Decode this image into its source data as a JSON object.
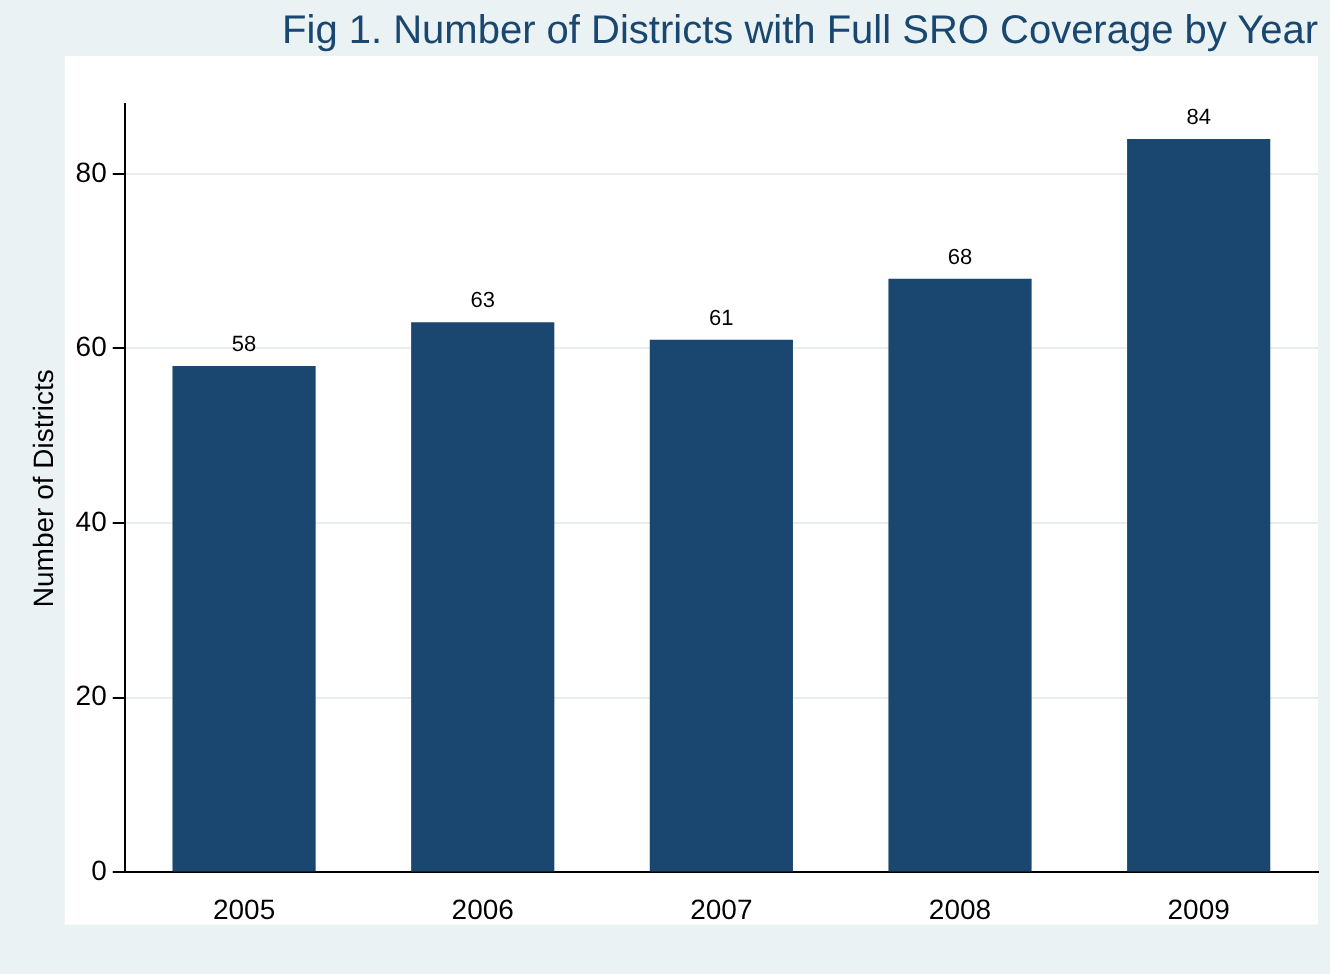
{
  "chart_data": {
    "type": "bar",
    "title": "Fig 1. Number of Districts with Full SRO Coverage by Year",
    "ylabel": "Number of Districts",
    "categories": [
      "2005",
      "2006",
      "2007",
      "2008",
      "2009"
    ],
    "values": [
      58,
      63,
      61,
      68,
      84
    ],
    "color": "#1a476f",
    "ylim": [
      0,
      88
    ],
    "yticks": [
      0,
      20,
      40,
      60,
      80
    ],
    "grid": "y",
    "data_labels": true
  }
}
